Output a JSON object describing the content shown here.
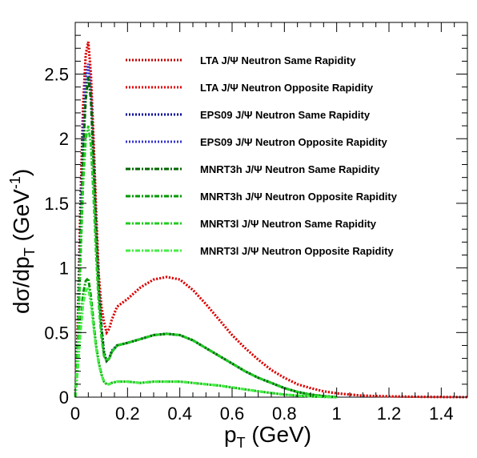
{
  "chart_data": {
    "type": "line",
    "xlabel": "p_T (GeV)",
    "xlabel_main": "p",
    "xlabel_sub": "T",
    "xlabel_unit": " (GeV)",
    "ylabel": "dσ/dp_T (GeV^-1)",
    "ylabel_main": "dσ/dp",
    "ylabel_sub": "T",
    "ylabel_unit_open": " (GeV",
    "ylabel_sup": "-1",
    "ylabel_unit_close": ")",
    "xlim": [
      0,
      1.5
    ],
    "ylim": [
      0,
      2.9
    ],
    "x_ticks": [
      0,
      0.2,
      0.4,
      0.6,
      0.8,
      1,
      1.2,
      1.4
    ],
    "x_tick_labels": [
      "0",
      "0.2",
      "0.4",
      "0.6",
      "0.8",
      "1",
      "1.2",
      "1.4"
    ],
    "y_ticks": [
      0,
      0.5,
      1,
      1.5,
      2,
      2.5
    ],
    "y_tick_labels": [
      "0",
      "0.5",
      "1",
      "1.5",
      "2",
      "2.5"
    ],
    "grid": false,
    "legend_position": "top-right",
    "series": [
      {
        "name": "LTA J/Ψ Neutron Same Rapidity",
        "color": "#c00000",
        "dash": "dotted",
        "x": [
          0,
          0.01,
          0.02,
          0.03,
          0.04,
          0.05,
          0.06,
          0.07,
          0.08,
          0.09,
          0.1,
          0.11,
          0.12,
          0.13,
          0.14,
          0.16,
          0.2,
          0.25,
          0.3,
          0.35,
          0.4,
          0.45,
          0.5,
          0.55,
          0.6,
          0.65,
          0.7,
          0.75,
          0.8,
          0.85,
          0.9,
          0.95,
          1.0,
          1.05,
          1.1,
          1.2,
          1.3,
          1.4,
          1.5
        ],
        "y": [
          0,
          0.6,
          1.5,
          2.25,
          2.65,
          2.75,
          2.5,
          2.0,
          1.45,
          0.95,
          0.7,
          0.58,
          0.5,
          0.53,
          0.6,
          0.7,
          0.76,
          0.85,
          0.91,
          0.93,
          0.91,
          0.83,
          0.72,
          0.6,
          0.48,
          0.38,
          0.29,
          0.21,
          0.15,
          0.1,
          0.07,
          0.045,
          0.03,
          0.02,
          0.012,
          0.006,
          0.003,
          0.001,
          0
        ]
      },
      {
        "name": "LTA J/Ψ Neutron Opposite Rapidity",
        "color": "#e00000",
        "dash": "dotted",
        "x": [
          0,
          0.01,
          0.02,
          0.03,
          0.04,
          0.05,
          0.06,
          0.07,
          0.08,
          0.09,
          0.1,
          0.11,
          0.12,
          0.13,
          0.14,
          0.16,
          0.2,
          0.25,
          0.3,
          0.35,
          0.4,
          0.45,
          0.5,
          0.55,
          0.6,
          0.65,
          0.7,
          0.75,
          0.8,
          0.85,
          0.9,
          0.95,
          1.0,
          1.05,
          1.1,
          1.2,
          1.3,
          1.4,
          1.5
        ],
        "y": [
          0,
          0.6,
          1.5,
          2.25,
          2.65,
          2.75,
          2.5,
          2.0,
          1.45,
          0.95,
          0.7,
          0.58,
          0.5,
          0.53,
          0.6,
          0.7,
          0.76,
          0.85,
          0.91,
          0.93,
          0.91,
          0.83,
          0.72,
          0.6,
          0.48,
          0.38,
          0.29,
          0.21,
          0.15,
          0.1,
          0.07,
          0.045,
          0.03,
          0.02,
          0.012,
          0.006,
          0.003,
          0.001,
          0
        ]
      },
      {
        "name": "EPS09 J/Ψ Neutron Same Rapidity",
        "color": "#000099",
        "dash": "dotted",
        "x": [
          0,
          0.01,
          0.02,
          0.03,
          0.04,
          0.05,
          0.06,
          0.07,
          0.08,
          0.09,
          0.1,
          0.11,
          0.12,
          0.13,
          0.14,
          0.16,
          0.2,
          0.25,
          0.3,
          0.35,
          0.4,
          0.45,
          0.5,
          0.55,
          0.6,
          0.65,
          0.7,
          0.75,
          0.8,
          0.85,
          0.9,
          0.95,
          1.0
        ],
        "y": [
          0,
          0.5,
          1.3,
          2.05,
          2.45,
          2.58,
          2.35,
          1.85,
          1.3,
          0.85,
          0.55,
          0.35,
          0.28,
          0.3,
          0.36,
          0.4,
          0.42,
          0.45,
          0.48,
          0.49,
          0.48,
          0.44,
          0.38,
          0.32,
          0.26,
          0.2,
          0.15,
          0.11,
          0.07,
          0.04,
          0.02,
          0.008,
          0
        ]
      },
      {
        "name": "EPS09 J/Ψ Neutron Opposite Rapidity",
        "color": "#3333cc",
        "dash": "dotted",
        "x": [
          0,
          0.01,
          0.02,
          0.03,
          0.04,
          0.05,
          0.06,
          0.07,
          0.08,
          0.09,
          0.1,
          0.11,
          0.12,
          0.13,
          0.14,
          0.16,
          0.2,
          0.25,
          0.3,
          0.35,
          0.4,
          0.45,
          0.5,
          0.55,
          0.6,
          0.65,
          0.7,
          0.75,
          0.8,
          0.85,
          0.9,
          0.95,
          1.0
        ],
        "y": [
          0,
          0.5,
          1.3,
          2.05,
          2.45,
          2.58,
          2.35,
          1.85,
          1.3,
          0.85,
          0.55,
          0.35,
          0.28,
          0.3,
          0.36,
          0.4,
          0.42,
          0.45,
          0.48,
          0.49,
          0.48,
          0.44,
          0.38,
          0.32,
          0.26,
          0.2,
          0.15,
          0.11,
          0.07,
          0.04,
          0.02,
          0.008,
          0
        ]
      },
      {
        "name": "MNRT3h J/Ψ Neutron Same Rapidity",
        "color": "#006600",
        "dash": "dashdot",
        "x": [
          0,
          0.01,
          0.02,
          0.03,
          0.04,
          0.05,
          0.06,
          0.07,
          0.08,
          0.09,
          0.1,
          0.11,
          0.12,
          0.13,
          0.14,
          0.16,
          0.2,
          0.25,
          0.3,
          0.35,
          0.4,
          0.45,
          0.5,
          0.55,
          0.6,
          0.65,
          0.7,
          0.75,
          0.8,
          0.85,
          0.9,
          0.95,
          1.0
        ],
        "y": [
          0,
          0.45,
          1.2,
          1.9,
          2.3,
          2.48,
          2.3,
          1.82,
          1.28,
          0.83,
          0.54,
          0.34,
          0.28,
          0.3,
          0.35,
          0.4,
          0.42,
          0.45,
          0.48,
          0.49,
          0.48,
          0.44,
          0.38,
          0.32,
          0.26,
          0.2,
          0.15,
          0.11,
          0.07,
          0.04,
          0.02,
          0.008,
          0
        ]
      },
      {
        "name": "MNRT3h J/Ψ Neutron Opposite Rapidity",
        "color": "#009900",
        "dash": "dashdot",
        "x": [
          0,
          0.01,
          0.02,
          0.03,
          0.04,
          0.05,
          0.06,
          0.07,
          0.08,
          0.09,
          0.1,
          0.11,
          0.12,
          0.13,
          0.14,
          0.16,
          0.2,
          0.25,
          0.3,
          0.35,
          0.4,
          0.45,
          0.5,
          0.55,
          0.6,
          0.65,
          0.7,
          0.75,
          0.8,
          0.85,
          0.9,
          0.95,
          1.0
        ],
        "y": [
          0,
          0.25,
          0.55,
          0.8,
          0.9,
          0.92,
          0.78,
          0.58,
          0.4,
          0.27,
          0.18,
          0.12,
          0.1,
          0.1,
          0.11,
          0.12,
          0.12,
          0.11,
          0.12,
          0.12,
          0.12,
          0.11,
          0.1,
          0.09,
          0.075,
          0.06,
          0.045,
          0.032,
          0.02,
          0.012,
          0.006,
          0.002,
          0
        ]
      },
      {
        "name": "MNRT3l J/Ψ Neutron Same Rapidity",
        "color": "#22cc22",
        "dash": "dashdot",
        "x": [
          0,
          0.01,
          0.02,
          0.03,
          0.04,
          0.05,
          0.06,
          0.07,
          0.08,
          0.09,
          0.1,
          0.11,
          0.12,
          0.13,
          0.14,
          0.16,
          0.2,
          0.25,
          0.3,
          0.35,
          0.4,
          0.45,
          0.5,
          0.55,
          0.6,
          0.65,
          0.7,
          0.75,
          0.8,
          0.85,
          0.9,
          0.95,
          1.0
        ],
        "y": [
          0,
          0.4,
          1.05,
          1.65,
          2.0,
          2.1,
          1.95,
          1.55,
          1.1,
          0.72,
          0.47,
          0.32,
          0.28,
          0.3,
          0.35,
          0.4,
          0.42,
          0.45,
          0.48,
          0.49,
          0.48,
          0.44,
          0.38,
          0.32,
          0.26,
          0.2,
          0.15,
          0.11,
          0.07,
          0.04,
          0.02,
          0.008,
          0
        ]
      },
      {
        "name": "MNRT3l J/Ψ Neutron Opposite Rapidity",
        "color": "#44ee44",
        "dash": "dashdot",
        "x": [
          0,
          0.01,
          0.02,
          0.03,
          0.04,
          0.05,
          0.06,
          0.07,
          0.08,
          0.09,
          0.1,
          0.11,
          0.12,
          0.13,
          0.14,
          0.16,
          0.2,
          0.25,
          0.3,
          0.35,
          0.4,
          0.45,
          0.5,
          0.55,
          0.6,
          0.65,
          0.7,
          0.75,
          0.8,
          0.85,
          0.9,
          0.95,
          1.0
        ],
        "y": [
          0,
          0.22,
          0.5,
          0.72,
          0.82,
          0.85,
          0.72,
          0.54,
          0.38,
          0.26,
          0.17,
          0.12,
          0.1,
          0.1,
          0.11,
          0.12,
          0.12,
          0.11,
          0.12,
          0.12,
          0.12,
          0.11,
          0.1,
          0.09,
          0.075,
          0.06,
          0.045,
          0.032,
          0.02,
          0.012,
          0.006,
          0.002,
          0
        ]
      }
    ]
  }
}
